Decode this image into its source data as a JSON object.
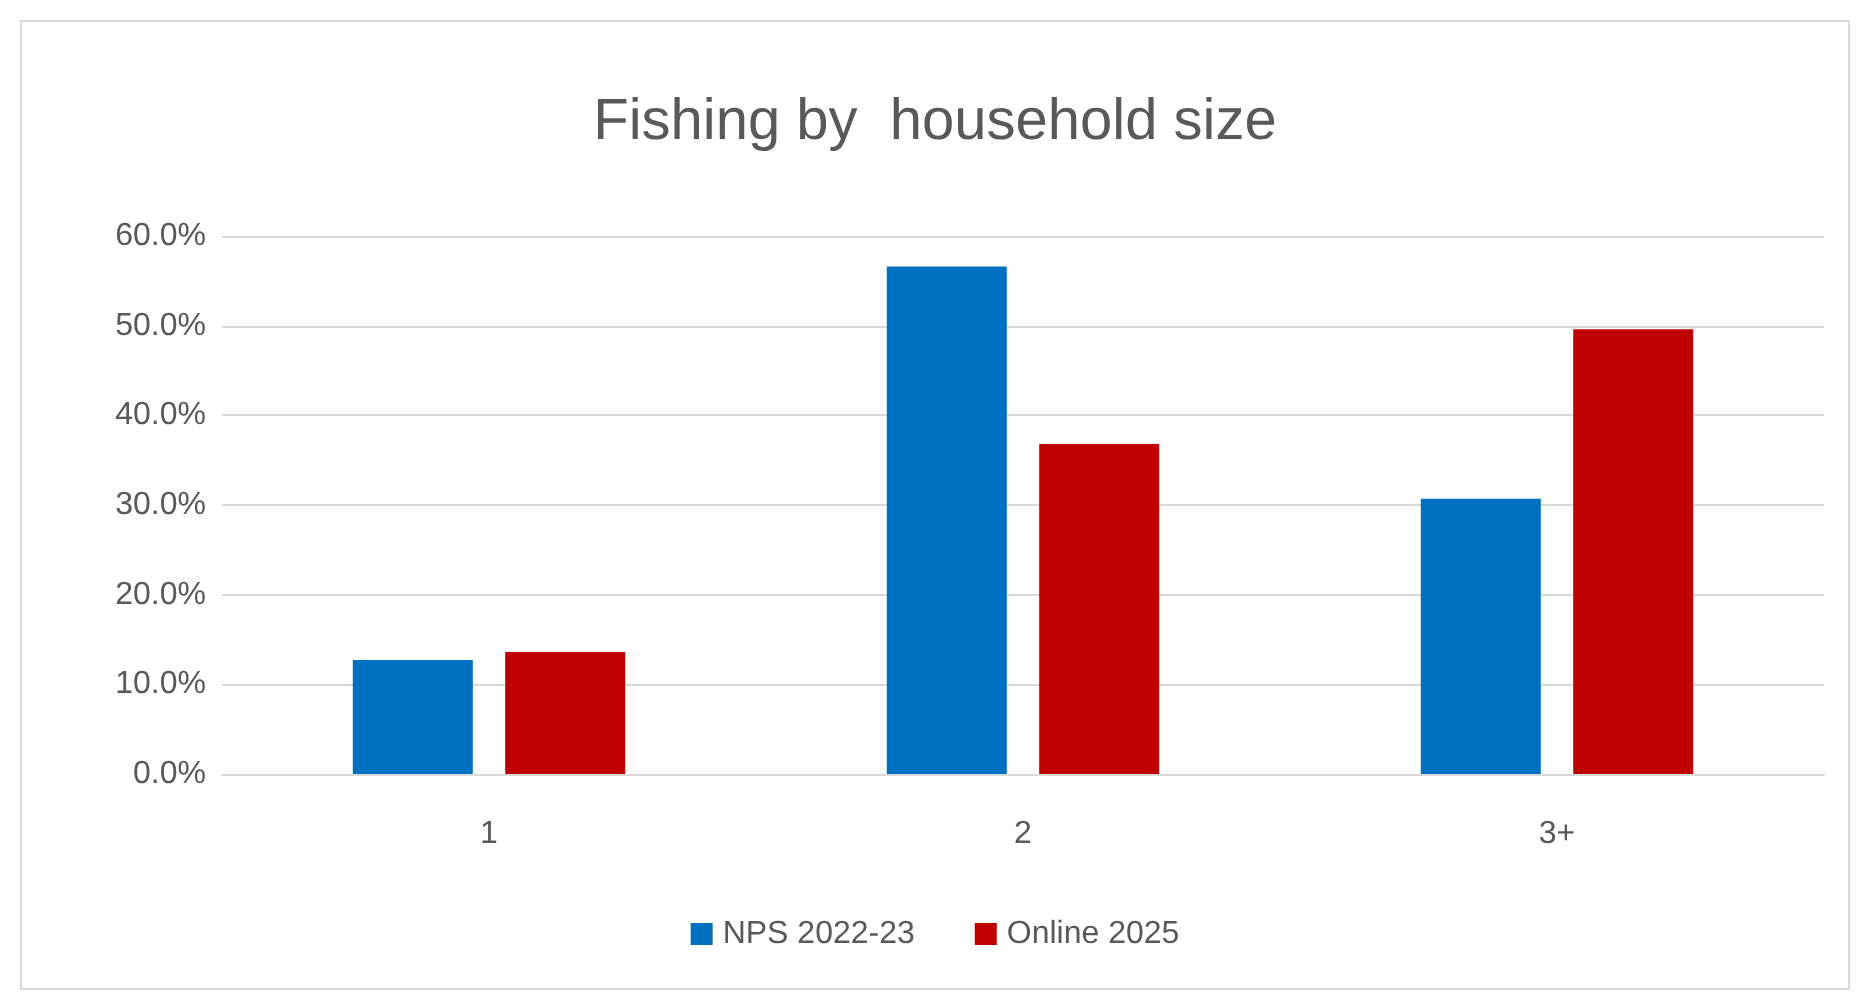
{
  "chart_data": {
    "type": "bar",
    "title": "Fishing by  household size",
    "categories": [
      "1",
      "2",
      "3+"
    ],
    "series": [
      {
        "name": "NPS 2022-23",
        "color": "#0070c0",
        "values": [
          12.7,
          56.6,
          30.7
        ]
      },
      {
        "name": "Online 2025",
        "color": "#c00000",
        "values": [
          13.6,
          36.8,
          49.6
        ]
      }
    ],
    "ylim": [
      0,
      60
    ],
    "yticks": [
      {
        "value": 0,
        "label": "0.0%"
      },
      {
        "value": 10,
        "label": "10.0%"
      },
      {
        "value": 20,
        "label": "20.0%"
      },
      {
        "value": 30,
        "label": "30.0%"
      },
      {
        "value": 40,
        "label": "40.0%"
      },
      {
        "value": 50,
        "label": "50.0%"
      },
      {
        "value": 60,
        "label": "60.0%"
      }
    ],
    "grid": "y",
    "legend": "bottom"
  }
}
